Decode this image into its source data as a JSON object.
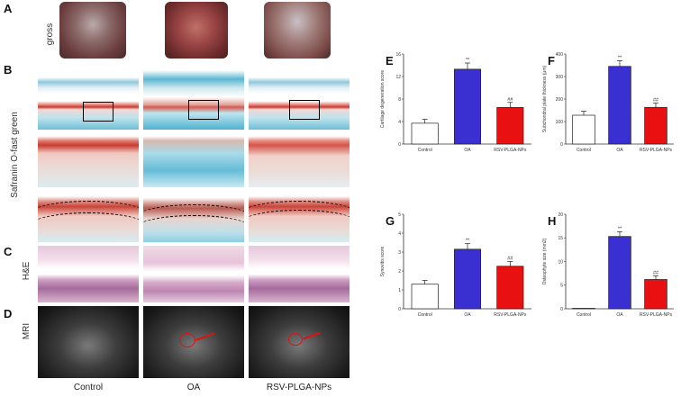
{
  "panel_labels": {
    "A": "A",
    "B": "B",
    "C": "C",
    "D": "D",
    "E": "E",
    "F": "F",
    "G": "G",
    "H": "H"
  },
  "row_labels": {
    "gross": "gross",
    "safranin": "Safranin O-fast green",
    "he": "H&E",
    "mri": "MRI"
  },
  "columns": [
    "Control",
    "OA",
    "RSV-PLGA-NPs"
  ],
  "chart_data": [
    {
      "panel": "E",
      "type": "bar",
      "categories": [
        "Control",
        "OA",
        "RSV-PLGA-NPs"
      ],
      "values": [
        3.7,
        13.3,
        6.5
      ],
      "errors": [
        0.7,
        1.1,
        0.9
      ],
      "colors": [
        "#ffffff",
        "#3a2fd0",
        "#e81010"
      ],
      "annotations": [
        "",
        "**",
        "##"
      ],
      "ylabel": "Cartilage degeneration score",
      "ylim": [
        0,
        16
      ],
      "yticks": [
        0,
        4,
        8,
        12,
        16
      ]
    },
    {
      "panel": "F",
      "type": "bar",
      "categories": [
        "Control",
        "OA",
        "RSV-PLGA-NPs"
      ],
      "values": [
        128,
        345,
        163
      ],
      "errors": [
        18,
        25,
        20
      ],
      "colors": [
        "#ffffff",
        "#3a2fd0",
        "#e81010"
      ],
      "annotations": [
        "",
        "**",
        "##"
      ],
      "ylabel": "Subchondral plate thickness (μm)",
      "ylim": [
        0,
        400
      ],
      "yticks": [
        0,
        100,
        200,
        300,
        400
      ]
    },
    {
      "panel": "G",
      "type": "bar",
      "categories": [
        "Control",
        "OA",
        "RSV-PLGA-NPs"
      ],
      "values": [
        1.3,
        3.15,
        2.25
      ],
      "errors": [
        0.2,
        0.3,
        0.25
      ],
      "colors": [
        "#ffffff",
        "#3a2fd0",
        "#e81010"
      ],
      "annotations": [
        "",
        "**",
        "##"
      ],
      "ylabel": "Synovitis score",
      "ylim": [
        0,
        5
      ],
      "yticks": [
        0,
        1,
        2,
        3,
        4,
        5
      ]
    },
    {
      "panel": "H",
      "type": "bar",
      "categories": [
        "Control",
        "OA",
        "RSV-PLGA-NPs"
      ],
      "values": [
        0.1,
        15.3,
        6.2
      ],
      "errors": [
        0,
        1.0,
        0.8
      ],
      "colors": [
        "#ffffff",
        "#3a2fd0",
        "#e81010"
      ],
      "annotations": [
        "",
        "**",
        "##"
      ],
      "ylabel": "Osteophyte size (mm2)",
      "ylim": [
        0,
        20
      ],
      "yticks": [
        0,
        5,
        10,
        15,
        20
      ]
    }
  ]
}
